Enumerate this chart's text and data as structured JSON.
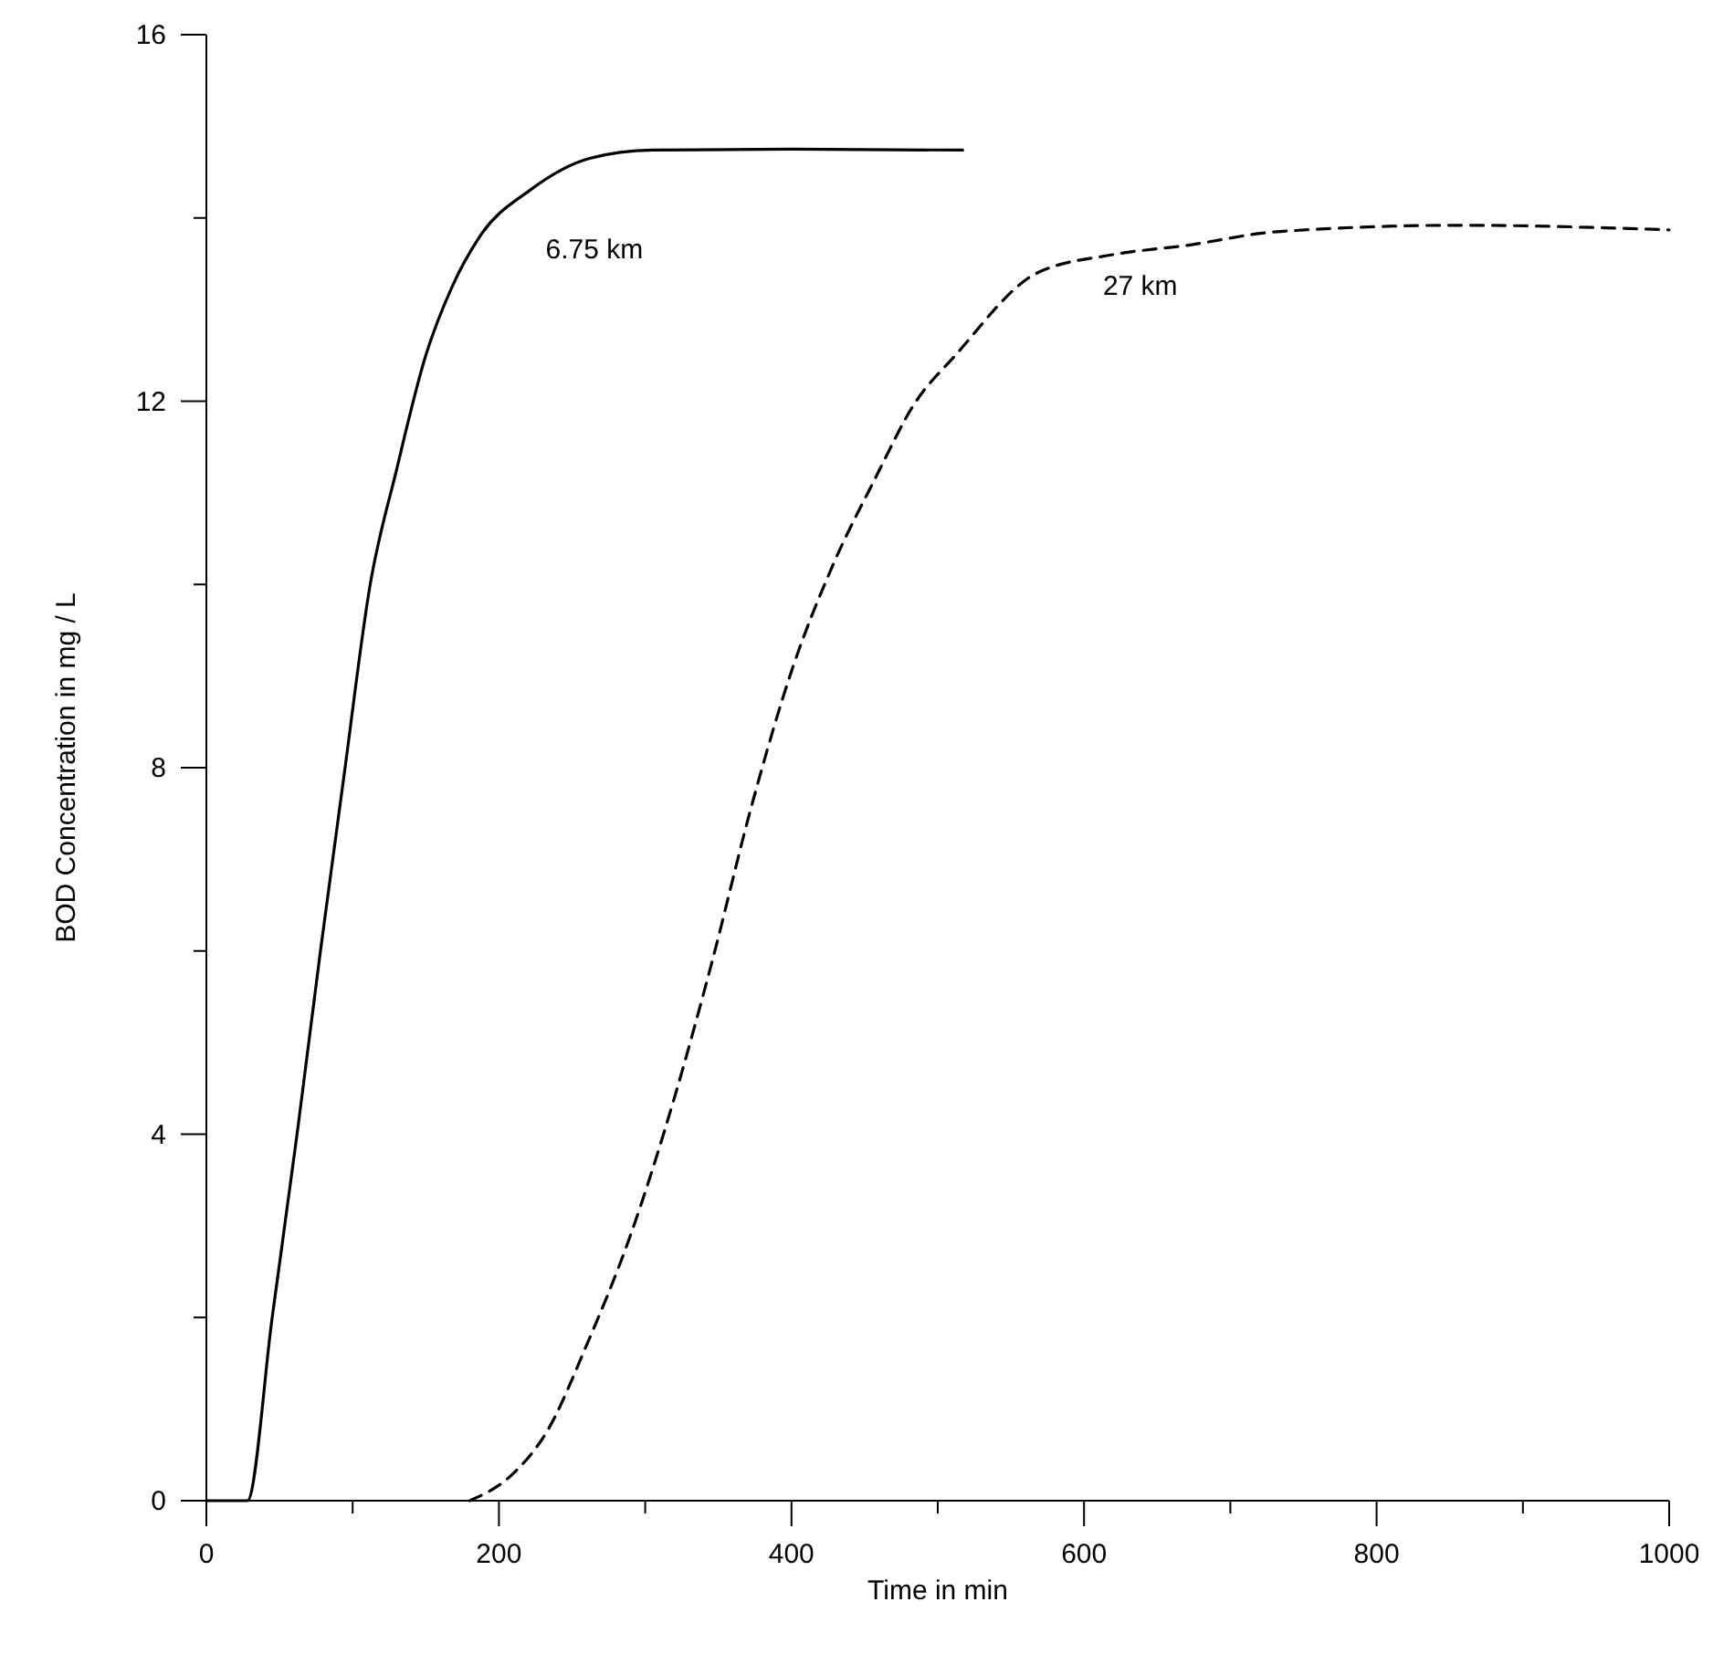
{
  "chart_data": {
    "type": "line",
    "xlabel": "Time in min",
    "ylabel": "BOD Concentration in mg / L",
    "xlim": [
      0,
      1000
    ],
    "ylim": [
      0,
      16
    ],
    "xticks": [
      0,
      {
        "value": 100,
        "label": null
      },
      200,
      {
        "value": 300,
        "label": null
      },
      400,
      {
        "value": 500,
        "label": null
      },
      600,
      {
        "value": 700,
        "label": null
      },
      800,
      {
        "value": 900,
        "label": null
      },
      1000
    ],
    "yticks": [
      0,
      {
        "value": 2,
        "label": null
      },
      4,
      {
        "value": 6,
        "label": null
      },
      8,
      {
        "value": 10,
        "label": null
      },
      12,
      {
        "value": 14,
        "label": null
      },
      16
    ],
    "grid": false,
    "legend": false,
    "marker": "none",
    "series": [
      {
        "name": "6.75 km",
        "color": "#000000",
        "line_style": "solid",
        "x": [
          0,
          20,
          28,
          45,
          62,
          78,
          94,
          112,
          130,
          150,
          168,
          187,
          221,
          262,
          305,
          400,
          517
        ],
        "values": [
          0,
          0,
          0,
          2,
          4,
          6,
          7.9,
          10,
          11.25,
          12.5,
          13.25,
          13.8,
          14.3,
          14.65,
          14.74,
          14.75,
          14.74
        ]
      },
      {
        "name": "27 km",
        "color": "#000000",
        "line_style": "dashed",
        "x": [
          180,
          210,
          233,
          260,
          290,
          320,
          345,
          373,
          401,
          428,
          457,
          484,
          512,
          568,
          620,
          670,
          732,
          857,
          1000
        ],
        "values": [
          0,
          0.3,
          0.76,
          1.7,
          2.9,
          4.4,
          5.84,
          7.6,
          9.1,
          10.2,
          11.15,
          11.97,
          12.5,
          13.4,
          13.6,
          13.7,
          13.85,
          13.92,
          13.87
        ]
      }
    ]
  }
}
